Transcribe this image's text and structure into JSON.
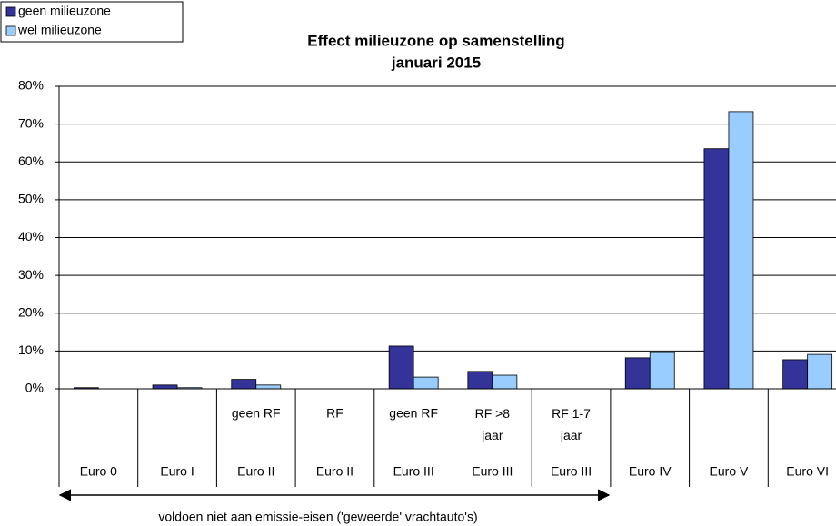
{
  "chart_data": {
    "type": "bar",
    "title": "Effect milieuzone op samenstelling",
    "subtitle": "januari 2015",
    "categories": [
      "Euro 0",
      "Euro I",
      "Euro II",
      "Euro II",
      "Euro III",
      "Euro III",
      "Euro III",
      "Euro IV",
      "Euro V",
      "Euro VI"
    ],
    "sublabels": [
      null,
      null,
      "geen RF",
      "RF",
      "geen RF",
      "RF >8 jaar",
      "RF 1-7 jaar",
      null,
      null,
      null
    ],
    "series": [
      {
        "name": "geen milieuzone",
        "color": "#333399",
        "values": [
          0.3,
          1.0,
          2.5,
          0,
          11.3,
          4.6,
          0,
          8.2,
          63.5,
          7.7
        ]
      },
      {
        "name": "wel milieuzone",
        "color": "#99ccff",
        "values": [
          0,
          0.3,
          1.0,
          0,
          3.1,
          3.6,
          0,
          9.6,
          73.3,
          9.1
        ]
      }
    ],
    "ylim": [
      0,
      80
    ],
    "yticks": [
      {
        "value": 0,
        "label": "0%"
      },
      {
        "value": 10,
        "label": "10%"
      },
      {
        "value": 20,
        "label": "20%"
      },
      {
        "value": 30,
        "label": "30%"
      },
      {
        "value": 40,
        "label": "40%"
      },
      {
        "value": 50,
        "label": "50%"
      },
      {
        "value": 60,
        "label": "60%"
      },
      {
        "value": 70,
        "label": "70%"
      },
      {
        "value": 80,
        "label": "80%"
      }
    ],
    "grid": true,
    "legend": "top-left",
    "annotation": "voldoen niet aan emissie-eisen ('geweerde' vrachtauto's)"
  }
}
